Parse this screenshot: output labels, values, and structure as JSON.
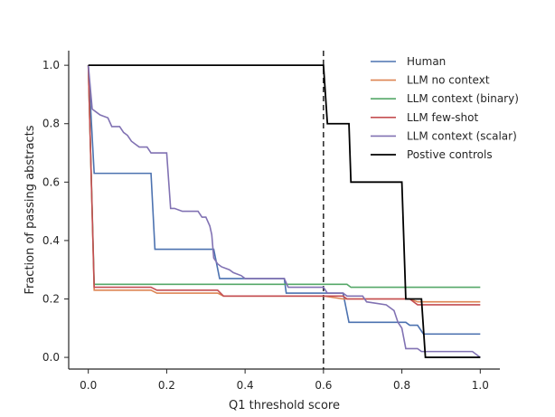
{
  "chart_data": {
    "type": "line",
    "title": "",
    "xlabel": "Q1 threshold score",
    "ylabel": "Fraction of passing abstracts",
    "xlim": [
      -0.05,
      1.05
    ],
    "ylim": [
      -0.04,
      1.05
    ],
    "xticks": [
      0.0,
      0.2,
      0.4,
      0.6,
      0.8,
      1.0
    ],
    "xtick_labels": [
      "0.0",
      "0.2",
      "0.4",
      "0.6",
      "0.8",
      "1.0"
    ],
    "yticks": [
      0.0,
      0.2,
      0.4,
      0.6,
      0.8,
      1.0
    ],
    "ytick_labels": [
      "0.0",
      "0.2",
      "0.4",
      "0.6",
      "0.8",
      "1.0"
    ],
    "grid": false,
    "legend_position": "top-right",
    "reference_line": {
      "x": 0.6,
      "style": "dashed",
      "color": "#000000"
    },
    "series": [
      {
        "name": "Human",
        "color": "#4c72b0",
        "points": [
          [
            0.0,
            1.0
          ],
          [
            0.015,
            0.63
          ],
          [
            0.16,
            0.63
          ],
          [
            0.17,
            0.37
          ],
          [
            0.32,
            0.37
          ],
          [
            0.335,
            0.27
          ],
          [
            0.5,
            0.27
          ],
          [
            0.505,
            0.22
          ],
          [
            0.65,
            0.22
          ],
          [
            0.665,
            0.12
          ],
          [
            0.81,
            0.12
          ],
          [
            0.82,
            0.11
          ],
          [
            0.84,
            0.11
          ],
          [
            0.855,
            0.08
          ],
          [
            1.0,
            0.08
          ]
        ]
      },
      {
        "name": "LLM no context",
        "color": "#dd8452",
        "points": [
          [
            0.0,
            1.0
          ],
          [
            0.015,
            0.23
          ],
          [
            0.16,
            0.23
          ],
          [
            0.175,
            0.22
          ],
          [
            0.33,
            0.22
          ],
          [
            0.345,
            0.21
          ],
          [
            0.6,
            0.21
          ],
          [
            0.65,
            0.2
          ],
          [
            0.82,
            0.2
          ],
          [
            0.84,
            0.19
          ],
          [
            1.0,
            0.19
          ]
        ]
      },
      {
        "name": "LLM context (binary)",
        "color": "#55a868",
        "points": [
          [
            0.0,
            1.0
          ],
          [
            0.015,
            0.25
          ],
          [
            0.5,
            0.25
          ],
          [
            0.66,
            0.25
          ],
          [
            0.67,
            0.24
          ],
          [
            1.0,
            0.24
          ]
        ]
      },
      {
        "name": "LLM few-shot",
        "color": "#c44e52",
        "points": [
          [
            0.0,
            1.0
          ],
          [
            0.015,
            0.24
          ],
          [
            0.16,
            0.24
          ],
          [
            0.175,
            0.23
          ],
          [
            0.33,
            0.23
          ],
          [
            0.345,
            0.21
          ],
          [
            0.6,
            0.21
          ],
          [
            0.65,
            0.21
          ],
          [
            0.66,
            0.2
          ],
          [
            0.82,
            0.2
          ],
          [
            0.84,
            0.18
          ],
          [
            1.0,
            0.18
          ]
        ]
      },
      {
        "name": "LLM context (scalar)",
        "color": "#8172b3",
        "points": [
          [
            0.0,
            1.0
          ],
          [
            0.01,
            0.85
          ],
          [
            0.02,
            0.84
          ],
          [
            0.03,
            0.83
          ],
          [
            0.05,
            0.82
          ],
          [
            0.06,
            0.79
          ],
          [
            0.08,
            0.79
          ],
          [
            0.09,
            0.77
          ],
          [
            0.1,
            0.76
          ],
          [
            0.11,
            0.74
          ],
          [
            0.12,
            0.73
          ],
          [
            0.13,
            0.72
          ],
          [
            0.15,
            0.72
          ],
          [
            0.16,
            0.7
          ],
          [
            0.2,
            0.7
          ],
          [
            0.21,
            0.51
          ],
          [
            0.22,
            0.51
          ],
          [
            0.24,
            0.5
          ],
          [
            0.28,
            0.5
          ],
          [
            0.29,
            0.48
          ],
          [
            0.3,
            0.48
          ],
          [
            0.31,
            0.45
          ],
          [
            0.315,
            0.42
          ],
          [
            0.32,
            0.34
          ],
          [
            0.33,
            0.32
          ],
          [
            0.34,
            0.31
          ],
          [
            0.36,
            0.3
          ],
          [
            0.37,
            0.29
          ],
          [
            0.39,
            0.28
          ],
          [
            0.4,
            0.27
          ],
          [
            0.45,
            0.27
          ],
          [
            0.5,
            0.27
          ],
          [
            0.51,
            0.24
          ],
          [
            0.6,
            0.24
          ],
          [
            0.61,
            0.22
          ],
          [
            0.65,
            0.22
          ],
          [
            0.66,
            0.21
          ],
          [
            0.7,
            0.21
          ],
          [
            0.71,
            0.19
          ],
          [
            0.76,
            0.18
          ],
          [
            0.78,
            0.16
          ],
          [
            0.79,
            0.12
          ],
          [
            0.8,
            0.1
          ],
          [
            0.81,
            0.03
          ],
          [
            0.84,
            0.03
          ],
          [
            0.85,
            0.02
          ],
          [
            0.98,
            0.02
          ],
          [
            0.99,
            0.01
          ],
          [
            1.0,
            0.0
          ]
        ]
      },
      {
        "name": "Postive controls",
        "color": "#000000",
        "points": [
          [
            0.0,
            1.0
          ],
          [
            0.6,
            1.0
          ],
          [
            0.61,
            0.8
          ],
          [
            0.665,
            0.8
          ],
          [
            0.67,
            0.6
          ],
          [
            0.8,
            0.6
          ],
          [
            0.81,
            0.2
          ],
          [
            0.85,
            0.2
          ],
          [
            0.86,
            0.0
          ],
          [
            1.0,
            0.0
          ]
        ]
      }
    ]
  }
}
